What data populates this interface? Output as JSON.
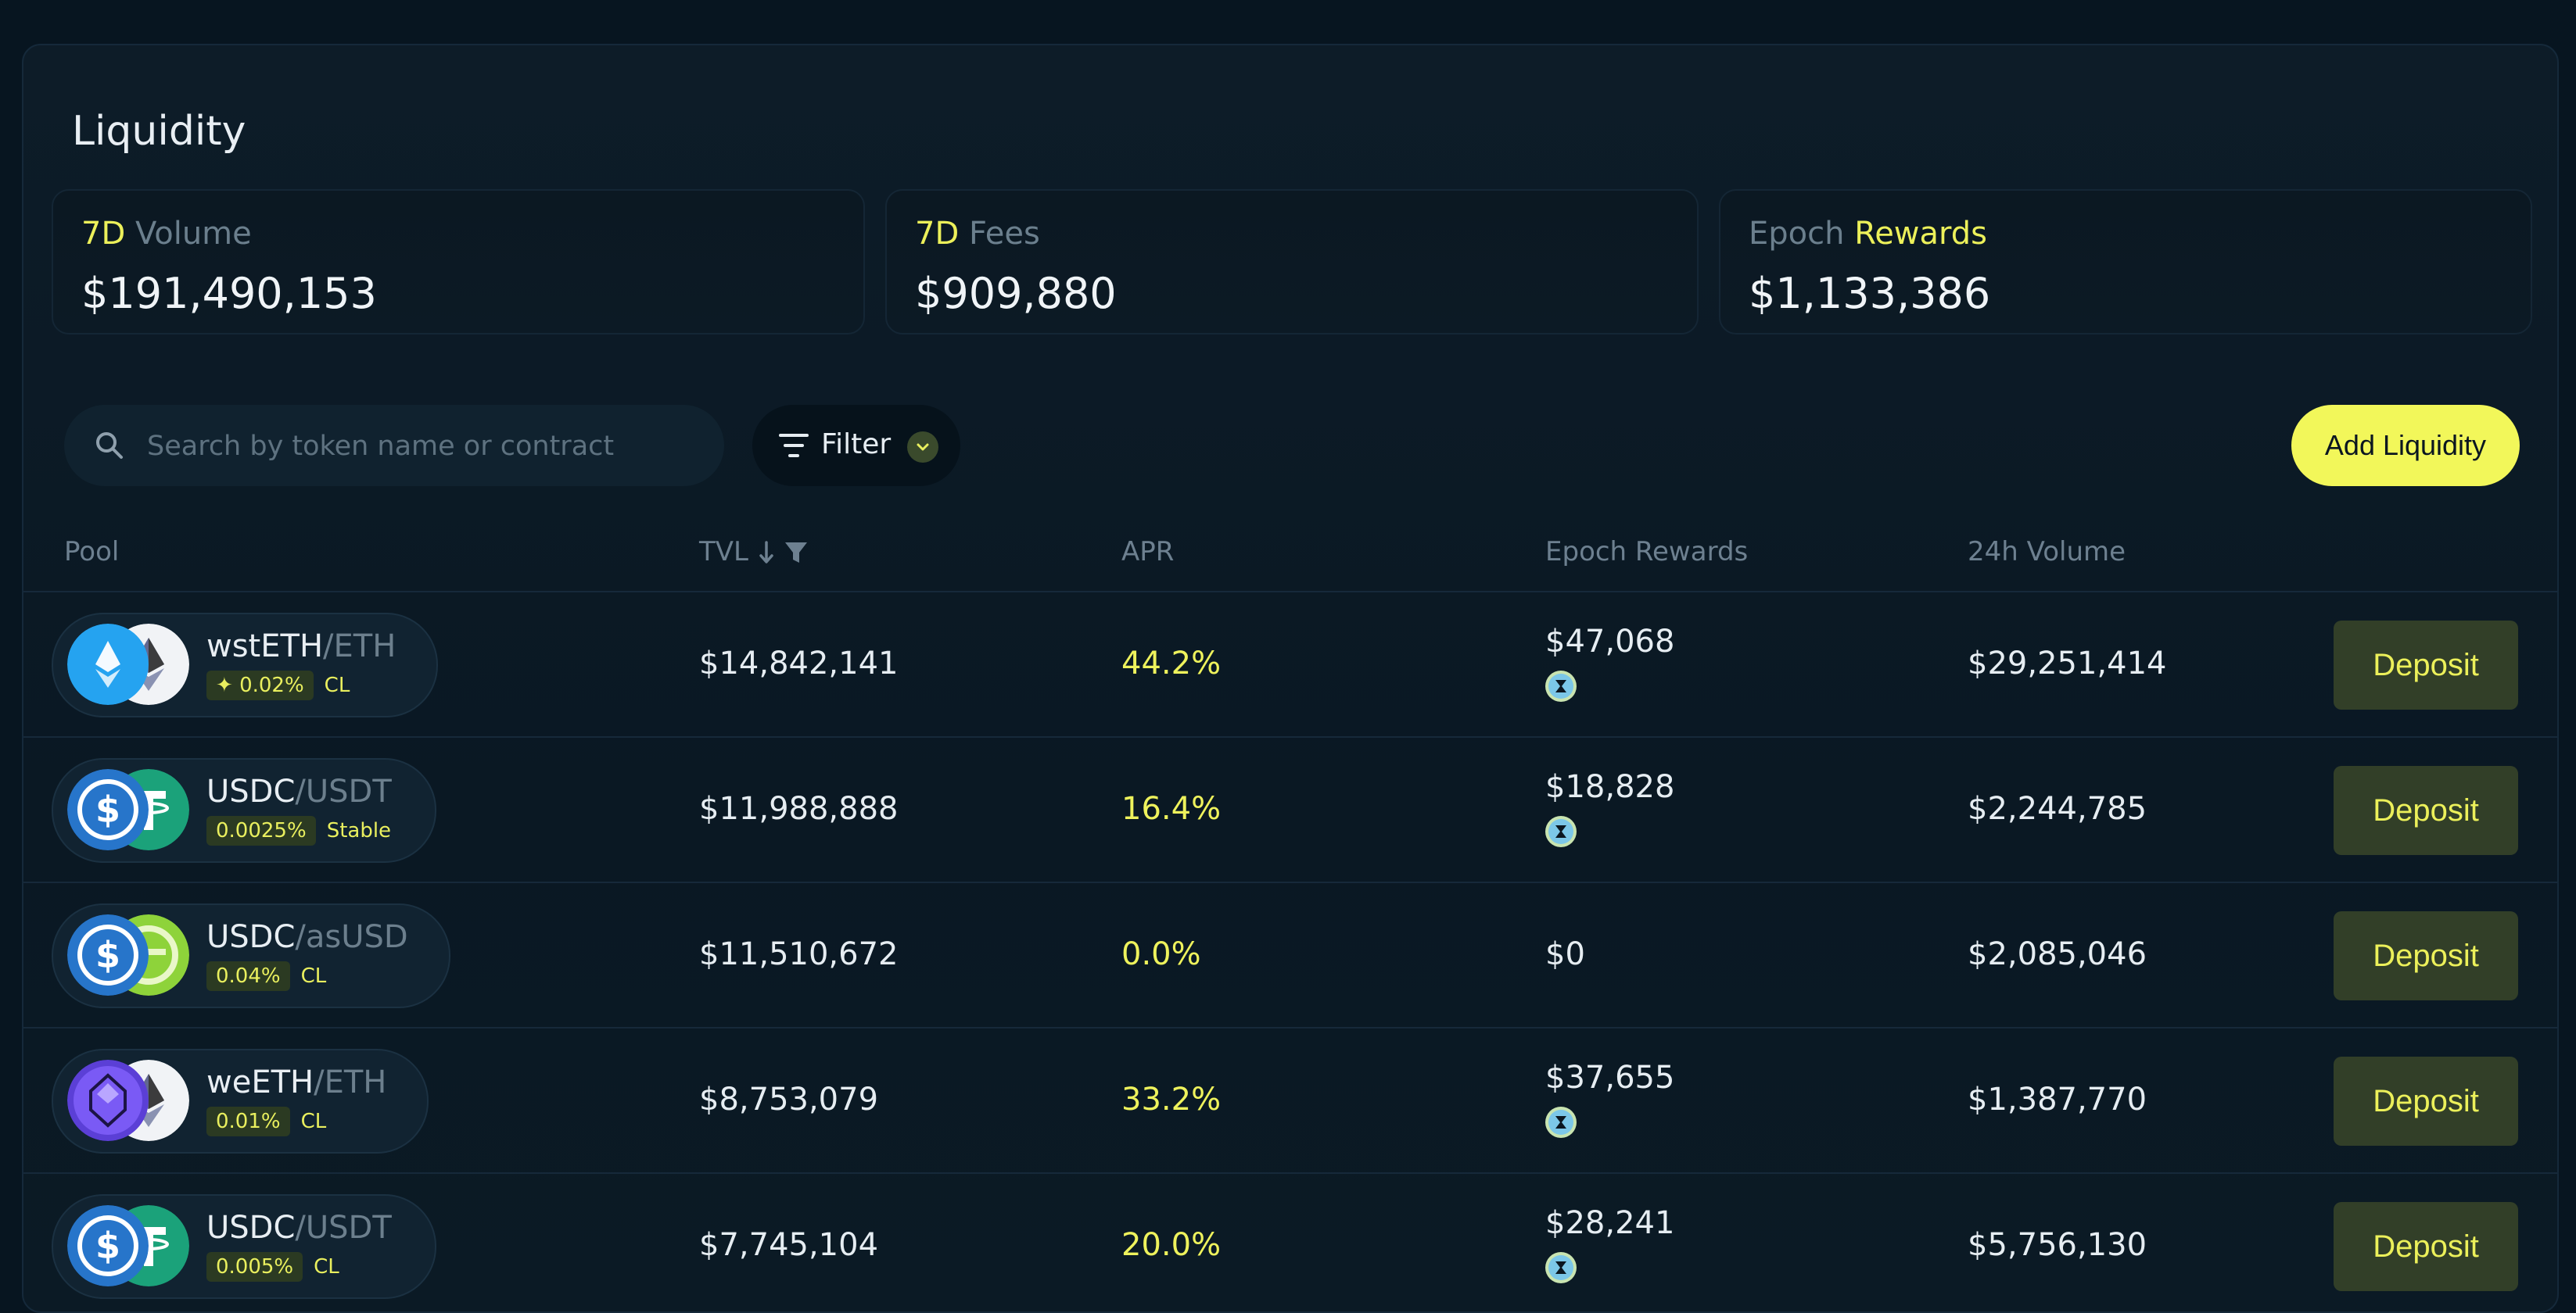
{
  "page": {
    "title": "Liquidity"
  },
  "stats": {
    "volume": {
      "highlight": "7D",
      "label": "Volume",
      "value": "$191,490,153"
    },
    "fees": {
      "highlight": "7D",
      "label": "Fees",
      "value": "$909,880"
    },
    "rewards": {
      "prefix": "Epoch",
      "highlight": "Rewards",
      "value": "$1,133,386"
    }
  },
  "toolbar": {
    "search_placeholder": "Search by token name or contract",
    "filter_label": "Filter",
    "add_label": "Add Liquidity"
  },
  "table": {
    "headers": {
      "pool": "Pool",
      "tvl": "TVL",
      "apr": "APR",
      "rewards": "Epoch Rewards",
      "volume": "24h Volume"
    },
    "deposit_label": "Deposit",
    "rows": [
      {
        "base": "wstETH",
        "quote": "/ETH",
        "fee": "0.02%",
        "kind": "CL",
        "tvl": "$14,842,141",
        "apr": "44.2%",
        "rewards": "$47,068",
        "volume": "$29,251,414"
      },
      {
        "base": "USDC",
        "quote": "/USDT",
        "fee": "0.0025%",
        "kind": "Stable",
        "tvl": "$11,988,888",
        "apr": "16.4%",
        "rewards": "$18,828",
        "volume": "$2,244,785"
      },
      {
        "base": "USDC",
        "quote": "/asUSD",
        "fee": "0.04%",
        "kind": "CL",
        "tvl": "$11,510,672",
        "apr": "0.0%",
        "rewards": "$0",
        "volume": "$2,085,046"
      },
      {
        "base": "weETH",
        "quote": "/ETH",
        "fee": "0.01%",
        "kind": "CL",
        "tvl": "$8,753,079",
        "apr": "33.2%",
        "rewards": "$37,655",
        "volume": "$1,387,770"
      },
      {
        "base": "USDC",
        "quote": "/USDT",
        "fee": "0.005%",
        "kind": "CL",
        "tvl": "$7,745,104",
        "apr": "20.0%",
        "rewards": "$28,241",
        "volume": "$5,756,130"
      }
    ]
  },
  "colors": {
    "accent": "#f2f75a",
    "background": "#071520",
    "deposit_bg": "#323f28"
  }
}
